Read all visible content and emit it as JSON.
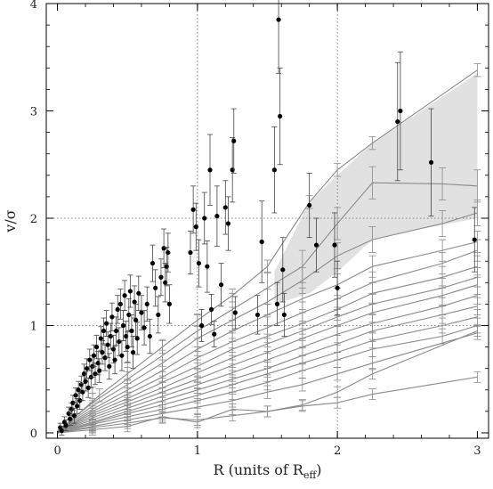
{
  "chart_data": {
    "type": "scatter",
    "xlabel": "R (units of R",
    "xlabel_sub": "eff",
    "xlabel_close": ")",
    "ylabel": "v/σ",
    "xlim": [
      -0.08,
      3.08
    ],
    "ylim": [
      -0.05,
      4.0
    ],
    "xticks": [
      0,
      1,
      2,
      3
    ],
    "yticks": [
      0,
      1,
      2,
      3,
      4
    ],
    "xtick_labels": [
      "0",
      "1",
      "2",
      "3"
    ],
    "ytick_labels": [
      "0",
      "1",
      "2",
      "3",
      "4"
    ],
    "reference_lines": {
      "x": [
        1,
        2
      ],
      "y": [
        1,
        2
      ],
      "style": "dotted"
    },
    "grid": false,
    "colors": {
      "points": "#000000",
      "models": "#8a8a8a",
      "band": "#d9d9d9"
    },
    "shaded_band": {
      "x": [
        1.55,
        1.8,
        2.0,
        2.25,
        2.6,
        3.0
      ],
      "upper": [
        1.5,
        2.15,
        2.4,
        2.7,
        3.0,
        3.35
      ],
      "lower": [
        1.2,
        1.3,
        1.5,
        1.8,
        1.9,
        2.0
      ]
    },
    "model_curves": [
      {
        "x": [
          0,
          0.1,
          0.3,
          0.5,
          0.75,
          1.0,
          1.25,
          1.5,
          1.8,
          2.0,
          2.25,
          3.0
        ],
        "y": [
          0.02,
          0.12,
          0.35,
          0.55,
          0.8,
          1.05,
          1.28,
          1.55,
          2.15,
          2.45,
          2.7,
          3.38
        ],
        "yerr": 0.06
      },
      {
        "x": [
          0,
          0.25,
          0.5,
          0.75,
          1.0,
          1.25,
          1.5,
          1.75,
          2.0,
          2.25,
          2.75,
          3.0
        ],
        "y": [
          0.02,
          0.28,
          0.5,
          0.72,
          0.95,
          1.15,
          1.35,
          1.55,
          1.95,
          2.33,
          2.32,
          2.3
        ],
        "yerr": 0.15
      },
      {
        "x": [
          0,
          0.25,
          0.5,
          0.75,
          1.0,
          1.25,
          1.5,
          1.75,
          2.0,
          2.25,
          2.75,
          3.0
        ],
        "y": [
          0.02,
          0.25,
          0.45,
          0.65,
          0.88,
          1.05,
          1.22,
          1.42,
          1.65,
          1.8,
          1.95,
          2.05
        ],
        "yerr": 0.12
      },
      {
        "x": [
          0,
          0.25,
          0.5,
          0.75,
          1.0,
          1.25,
          1.5,
          1.75,
          2.0,
          2.25,
          2.75,
          3.0
        ],
        "y": [
          0.02,
          0.22,
          0.4,
          0.58,
          0.78,
          0.95,
          1.1,
          1.25,
          1.38,
          1.55,
          1.7,
          1.78
        ],
        "yerr": 0.1
      },
      {
        "x": [
          0,
          0.25,
          0.5,
          0.75,
          1.0,
          1.25,
          1.5,
          1.75,
          2.0,
          2.25,
          2.75,
          3.0
        ],
        "y": [
          0.01,
          0.2,
          0.36,
          0.52,
          0.7,
          0.85,
          0.98,
          1.12,
          1.25,
          1.4,
          1.58,
          1.7
        ],
        "yerr": 0.1
      },
      {
        "x": [
          0,
          0.25,
          0.5,
          0.75,
          1.0,
          1.25,
          1.5,
          1.75,
          2.0,
          2.25,
          2.75,
          3.0
        ],
        "y": [
          0.01,
          0.18,
          0.32,
          0.47,
          0.62,
          0.78,
          0.9,
          1.02,
          1.15,
          1.3,
          1.45,
          1.55
        ],
        "yerr": 0.1
      },
      {
        "x": [
          0,
          0.25,
          0.5,
          0.75,
          1.0,
          1.25,
          1.5,
          1.75,
          2.0,
          2.25,
          2.75,
          3.0
        ],
        "y": [
          0.01,
          0.16,
          0.29,
          0.42,
          0.56,
          0.7,
          0.83,
          0.95,
          1.08,
          1.2,
          1.35,
          1.45
        ],
        "yerr": 0.09
      },
      {
        "x": [
          0,
          0.25,
          0.5,
          0.75,
          1.0,
          1.25,
          1.5,
          1.75,
          2.0,
          2.25,
          2.75,
          3.0
        ],
        "y": [
          0.01,
          0.14,
          0.26,
          0.38,
          0.5,
          0.63,
          0.75,
          0.88,
          1.0,
          1.12,
          1.28,
          1.38
        ],
        "yerr": 0.09
      },
      {
        "x": [
          0,
          0.25,
          0.5,
          0.75,
          1.0,
          1.25,
          1.5,
          1.75,
          2.0,
          2.25,
          2.75,
          3.0
        ],
        "y": [
          0.01,
          0.12,
          0.23,
          0.34,
          0.45,
          0.56,
          0.68,
          0.8,
          0.92,
          1.02,
          1.18,
          1.28
        ],
        "yerr": 0.08
      },
      {
        "x": [
          0,
          0.25,
          0.5,
          0.75,
          1.0,
          1.25,
          1.5,
          1.75,
          2.0,
          2.25,
          2.75,
          3.0
        ],
        "y": [
          0.01,
          0.1,
          0.2,
          0.3,
          0.4,
          0.5,
          0.6,
          0.72,
          0.83,
          0.95,
          1.1,
          1.18
        ],
        "yerr": 0.08
      },
      {
        "x": [
          0,
          0.25,
          0.5,
          0.75,
          1.0,
          1.25,
          1.5,
          1.75,
          2.0,
          2.25,
          2.75,
          3.0
        ],
        "y": [
          0.0,
          0.09,
          0.18,
          0.26,
          0.35,
          0.45,
          0.55,
          0.65,
          0.75,
          0.86,
          1.0,
          1.08
        ],
        "yerr": 0.07
      },
      {
        "x": [
          0,
          0.25,
          0.5,
          0.75,
          1.0,
          1.25,
          1.5,
          1.75,
          2.0,
          2.25,
          2.75,
          3.0
        ],
        "y": [
          0.0,
          0.08,
          0.15,
          0.22,
          0.3,
          0.38,
          0.47,
          0.58,
          0.68,
          0.78,
          0.9,
          1.0
        ],
        "yerr": 0.07
      },
      {
        "x": [
          0,
          0.25,
          0.5,
          0.75,
          1.0,
          1.25,
          1.5,
          1.75,
          2.0,
          2.25,
          3.0
        ],
        "y": [
          0.0,
          0.06,
          0.12,
          0.18,
          0.24,
          0.3,
          0.38,
          0.45,
          0.55,
          0.65,
          0.93
        ],
        "yerr": 0.06
      },
      {
        "x": [
          0,
          0.25,
          0.5,
          0.75,
          1.0,
          1.25,
          1.5,
          1.75,
          2.0,
          2.25,
          3.0
        ],
        "y": [
          0.0,
          0.05,
          0.09,
          0.14,
          0.12,
          0.16,
          0.2,
          0.26,
          0.38,
          0.55,
          0.95
        ],
        "yerr": 0.05
      },
      {
        "x": [
          0,
          0.25,
          0.5,
          0.75,
          1.0,
          1.25,
          1.5,
          1.75,
          2.0,
          2.25,
          3.0
        ],
        "y": [
          0.0,
          0.03,
          0.06,
          0.15,
          0.1,
          0.22,
          0.2,
          0.25,
          0.28,
          0.36,
          0.52
        ],
        "yerr": 0.05
      }
    ],
    "observed_points": [
      {
        "x": 0.02,
        "y": 0.05,
        "err": 0.04
      },
      {
        "x": 0.03,
        "y": 0.02,
        "err": 0.04
      },
      {
        "x": 0.05,
        "y": 0.1,
        "err": 0.05
      },
      {
        "x": 0.06,
        "y": 0.07,
        "err": 0.05
      },
      {
        "x": 0.08,
        "y": 0.18,
        "err": 0.06
      },
      {
        "x": 0.09,
        "y": 0.13,
        "err": 0.06
      },
      {
        "x": 0.1,
        "y": 0.22,
        "err": 0.06
      },
      {
        "x": 0.11,
        "y": 0.28,
        "err": 0.07
      },
      {
        "x": 0.12,
        "y": 0.16,
        "err": 0.07
      },
      {
        "x": 0.13,
        "y": 0.35,
        "err": 0.07
      },
      {
        "x": 0.14,
        "y": 0.25,
        "err": 0.07
      },
      {
        "x": 0.15,
        "y": 0.4,
        "err": 0.08
      },
      {
        "x": 0.16,
        "y": 0.3,
        "err": 0.08
      },
      {
        "x": 0.17,
        "y": 0.45,
        "err": 0.08
      },
      {
        "x": 0.18,
        "y": 0.38,
        "err": 0.08
      },
      {
        "x": 0.19,
        "y": 0.55,
        "err": 0.09
      },
      {
        "x": 0.2,
        "y": 0.48,
        "err": 0.09
      },
      {
        "x": 0.21,
        "y": 0.6,
        "err": 0.09
      },
      {
        "x": 0.22,
        "y": 0.42,
        "err": 0.09
      },
      {
        "x": 0.23,
        "y": 0.68,
        "err": 0.1
      },
      {
        "x": 0.24,
        "y": 0.52,
        "err": 0.1
      },
      {
        "x": 0.25,
        "y": 0.62,
        "err": 0.1
      },
      {
        "x": 0.26,
        "y": 0.72,
        "err": 0.1
      },
      {
        "x": 0.27,
        "y": 0.55,
        "err": 0.1
      },
      {
        "x": 0.28,
        "y": 0.8,
        "err": 0.11
      },
      {
        "x": 0.29,
        "y": 0.65,
        "err": 0.11
      },
      {
        "x": 0.3,
        "y": 0.58,
        "err": 0.11
      },
      {
        "x": 0.31,
        "y": 0.88,
        "err": 0.11
      },
      {
        "x": 0.32,
        "y": 0.75,
        "err": 0.11
      },
      {
        "x": 0.33,
        "y": 0.95,
        "err": 0.12
      },
      {
        "x": 0.34,
        "y": 0.7,
        "err": 0.12
      },
      {
        "x": 0.35,
        "y": 1.02,
        "err": 0.12
      },
      {
        "x": 0.36,
        "y": 0.82,
        "err": 0.12
      },
      {
        "x": 0.37,
        "y": 0.62,
        "err": 0.12
      },
      {
        "x": 0.38,
        "y": 0.9,
        "err": 0.12
      },
      {
        "x": 0.39,
        "y": 1.08,
        "err": 0.13
      },
      {
        "x": 0.4,
        "y": 0.78,
        "err": 0.13
      },
      {
        "x": 0.41,
        "y": 0.68,
        "err": 0.13
      },
      {
        "x": 0.42,
        "y": 0.95,
        "err": 0.13
      },
      {
        "x": 0.43,
        "y": 1.15,
        "err": 0.13
      },
      {
        "x": 0.44,
        "y": 0.85,
        "err": 0.13
      },
      {
        "x": 0.45,
        "y": 1.2,
        "err": 0.14
      },
      {
        "x": 0.46,
        "y": 0.72,
        "err": 0.14
      },
      {
        "x": 0.47,
        "y": 1.0,
        "err": 0.14
      },
      {
        "x": 0.48,
        "y": 1.28,
        "err": 0.14
      },
      {
        "x": 0.49,
        "y": 0.9,
        "err": 0.14
      },
      {
        "x": 0.5,
        "y": 0.8,
        "err": 0.14
      },
      {
        "x": 0.51,
        "y": 1.1,
        "err": 0.15
      },
      {
        "x": 0.52,
        "y": 1.32,
        "err": 0.15
      },
      {
        "x": 0.53,
        "y": 0.95,
        "err": 0.15
      },
      {
        "x": 0.54,
        "y": 0.75,
        "err": 0.15
      },
      {
        "x": 0.55,
        "y": 1.22,
        "err": 0.15
      },
      {
        "x": 0.56,
        "y": 1.05,
        "err": 0.15
      },
      {
        "x": 0.57,
        "y": 0.88,
        "err": 0.15
      },
      {
        "x": 0.58,
        "y": 1.3,
        "err": 0.16
      },
      {
        "x": 0.6,
        "y": 1.12,
        "err": 0.16
      },
      {
        "x": 0.62,
        "y": 0.98,
        "err": 0.16
      },
      {
        "x": 0.64,
        "y": 1.2,
        "err": 0.16
      },
      {
        "x": 0.66,
        "y": 0.9,
        "err": 0.16
      },
      {
        "x": 0.68,
        "y": 1.58,
        "err": 0.17
      },
      {
        "x": 0.7,
        "y": 1.35,
        "err": 0.17
      },
      {
        "x": 0.72,
        "y": 1.1,
        "err": 0.17
      },
      {
        "x": 0.74,
        "y": 1.45,
        "err": 0.17
      },
      {
        "x": 0.76,
        "y": 1.72,
        "err": 0.18
      },
      {
        "x": 0.77,
        "y": 1.4,
        "err": 0.18
      },
      {
        "x": 0.78,
        "y": 1.55,
        "err": 0.18
      },
      {
        "x": 0.79,
        "y": 1.68,
        "err": 0.18
      },
      {
        "x": 0.8,
        "y": 1.2,
        "err": 0.18
      },
      {
        "x": 0.95,
        "y": 1.68,
        "err": 0.2
      },
      {
        "x": 0.97,
        "y": 2.08,
        "err": 0.22
      },
      {
        "x": 0.99,
        "y": 1.92,
        "err": 0.22
      },
      {
        "x": 1.01,
        "y": 1.58,
        "err": 0.22
      },
      {
        "x": 1.03,
        "y": 1.0,
        "err": 0.15
      },
      {
        "x": 1.05,
        "y": 2.0,
        "err": 0.24
      },
      {
        "x": 1.07,
        "y": 1.55,
        "err": 0.24
      },
      {
        "x": 1.09,
        "y": 2.45,
        "err": 0.33
      },
      {
        "x": 1.1,
        "y": 1.15,
        "err": 0.14
      },
      {
        "x": 1.12,
        "y": 0.92,
        "err": 0.12
      },
      {
        "x": 1.14,
        "y": 2.02,
        "err": 0.28
      },
      {
        "x": 1.17,
        "y": 1.38,
        "err": 0.2
      },
      {
        "x": 1.2,
        "y": 2.1,
        "err": 0.25
      },
      {
        "x": 1.22,
        "y": 1.95,
        "err": 0.25
      },
      {
        "x": 1.25,
        "y": 2.45,
        "err": 0.3
      },
      {
        "x": 1.26,
        "y": 2.72,
        "err": 0.3
      },
      {
        "x": 1.27,
        "y": 1.12,
        "err": 0.15
      },
      {
        "x": 1.43,
        "y": 1.1,
        "err": 0.18
      },
      {
        "x": 1.46,
        "y": 1.78,
        "err": 0.38
      },
      {
        "x": 1.55,
        "y": 2.45,
        "err": 0.4
      },
      {
        "x": 1.57,
        "y": 1.2,
        "err": 0.2
      },
      {
        "x": 1.58,
        "y": 3.85,
        "err": 0.5
      },
      {
        "x": 1.59,
        "y": 2.95,
        "err": 0.45
      },
      {
        "x": 1.61,
        "y": 1.52,
        "err": 0.3
      },
      {
        "x": 1.62,
        "y": 1.1,
        "err": 0.2
      },
      {
        "x": 1.8,
        "y": 2.12,
        "err": 0.3
      },
      {
        "x": 1.85,
        "y": 1.75,
        "err": 0.25
      },
      {
        "x": 1.98,
        "y": 1.75,
        "err": 0.3
      },
      {
        "x": 2.0,
        "y": 1.35,
        "err": 0.25
      },
      {
        "x": 2.43,
        "y": 2.9,
        "err": 0.55
      },
      {
        "x": 2.45,
        "y": 3.0,
        "err": 0.55
      },
      {
        "x": 2.67,
        "y": 2.52,
        "err": 0.5
      },
      {
        "x": 2.98,
        "y": 1.8,
        "err": 0.3
      }
    ]
  }
}
